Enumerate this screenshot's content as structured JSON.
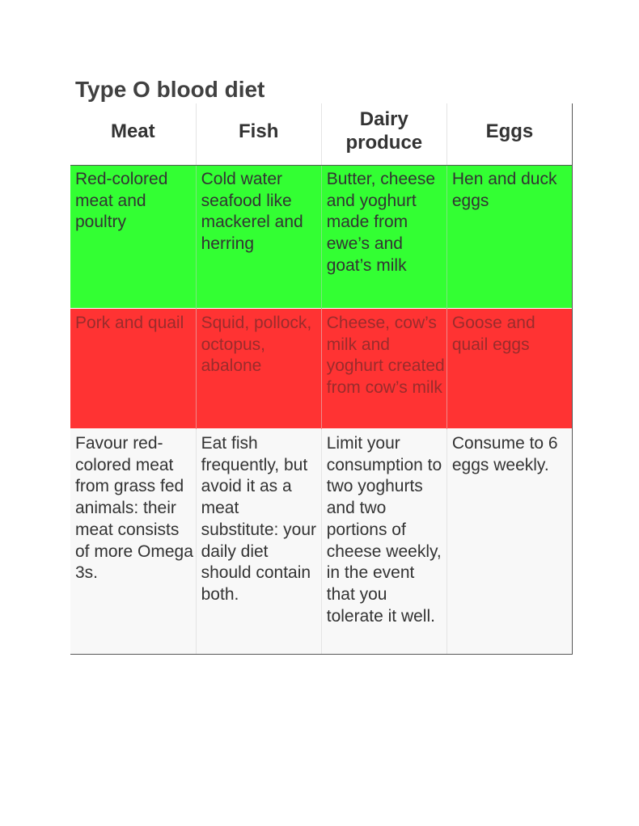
{
  "title": "Type O blood diet",
  "table": {
    "headers": [
      "Meat",
      "Fish",
      "Dairy produce",
      "Eggs"
    ],
    "rows": [
      {
        "kind": "recommended",
        "color": "#33ff33",
        "cells": [
          "Red-colored meat and poultry",
          "Cold water seafood like mackerel and herring",
          "Butter, cheese and yoghurt made from ewe’s and goat’s milk",
          "Hen and duck eggs"
        ]
      },
      {
        "kind": "avoid",
        "color": "#ff3333",
        "cells": [
          "Pork and quail",
          "Squid, pollock, octopus, abalone",
          "Cheese, cow’s milk and yoghurt created from cow’s milk",
          "Goose and quail eggs"
        ]
      },
      {
        "kind": "advice",
        "color": "#f8f8f8",
        "cells": [
          "Favour red-colored meat from grass fed animals: their meat consists of more Omega 3s.",
          "Eat fish frequently, but avoid it as a meat substitute: your daily diet should contain both.",
          "Limit your consumption to two yoghurts and two portions of cheese weekly, in the event that you tolerate it well.",
          "Consume to 6 eggs weekly."
        ]
      }
    ]
  }
}
